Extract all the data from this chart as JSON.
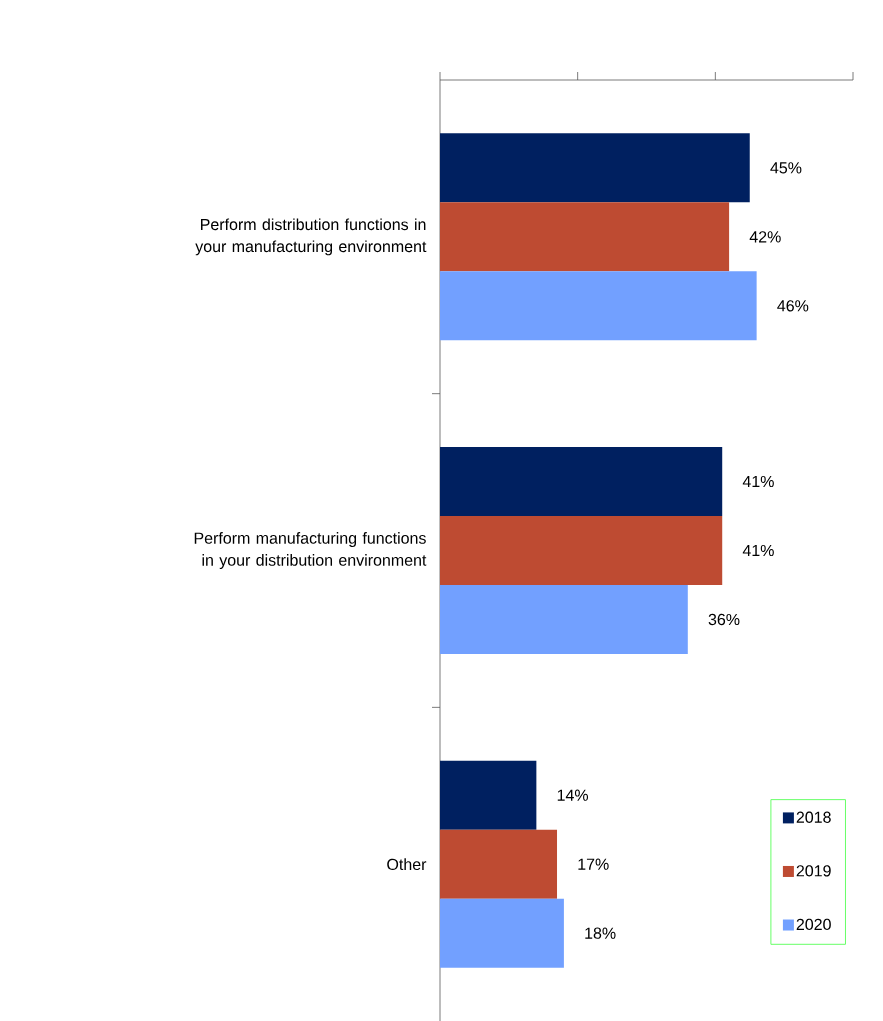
{
  "chart_data": {
    "type": "bar",
    "orientation": "horizontal",
    "categories": [
      "Perform distribution functions in your manufacturing environment",
      "Perform manufacturing functions in your distribution environment",
      "Other"
    ],
    "series": [
      {
        "name": "2018",
        "color": "#002060",
        "values": [
          45,
          41,
          14
        ],
        "value_labels": [
          "45%",
          "41%",
          "14%"
        ]
      },
      {
        "name": "2019",
        "color": "#be4b32",
        "values": [
          42,
          41,
          17
        ],
        "value_labels": [
          "42%",
          "41%",
          "17%"
        ]
      },
      {
        "name": "2020",
        "color": "#72a0ff",
        "values": [
          46,
          36,
          18
        ],
        "value_labels": [
          "46%",
          "36%",
          "18%"
        ]
      }
    ],
    "xlim": [
      0,
      60
    ],
    "xticks": [
      {
        "value": 0,
        "label": null
      },
      {
        "value": 20,
        "label": null
      },
      {
        "value": 40,
        "label": null
      },
      {
        "value": 60,
        "label": null
      }
    ],
    "tick_labels": "y",
    "legend": "bottom right"
  }
}
